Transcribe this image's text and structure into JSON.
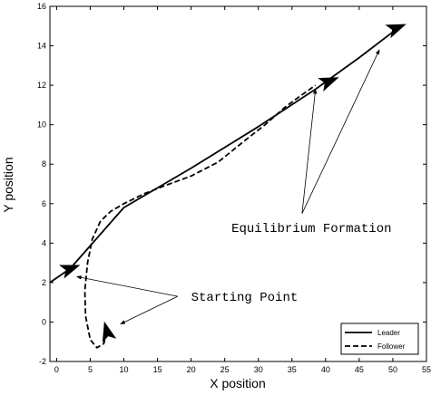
{
  "chart_data": {
    "type": "line",
    "xlabel": "X position",
    "ylabel": "Y position",
    "xlim": [
      -1,
      55
    ],
    "ylim": [
      -2,
      16
    ],
    "xticks": [
      0,
      5,
      10,
      15,
      20,
      25,
      30,
      35,
      40,
      45,
      50,
      55
    ],
    "yticks": [
      -2,
      0,
      2,
      4,
      6,
      8,
      10,
      12,
      14,
      16
    ],
    "grid": false,
    "legend_position": "bottom-right",
    "series": [
      {
        "name": "Leader",
        "style": "solid",
        "color": "#000000",
        "x": [
          -1,
          2,
          10,
          20,
          30,
          38.5,
          45,
          50
        ],
        "y": [
          2.0,
          2.7,
          5.8,
          7.8,
          9.9,
          11.8,
          13.4,
          14.7
        ]
      },
      {
        "name": "Follower",
        "style": "dashed",
        "color": "#000000",
        "x": [
          7.5,
          7.0,
          6.0,
          5.0,
          4.3,
          4.2,
          4.6,
          5.3,
          6.5,
          8.0,
          10.0,
          13.0,
          16.0,
          20.0,
          24.0,
          28.0,
          31.0,
          34.0,
          36.0,
          38.5
        ],
        "y": [
          -0.5,
          -1.1,
          -1.3,
          -0.9,
          0.3,
          1.6,
          3.0,
          4.2,
          5.1,
          5.6,
          6.0,
          6.5,
          6.9,
          7.4,
          8.1,
          9.2,
          10.0,
          10.9,
          11.4,
          12.0
        ]
      }
    ],
    "markers": [
      {
        "name": "leader-start-arrowhead",
        "x": 2.0,
        "y": 2.7,
        "angle_deg": 20
      },
      {
        "name": "follower-start-arrowhead",
        "x": 7.5,
        "y": -0.5,
        "angle_deg": 105
      },
      {
        "name": "mid-arrowhead",
        "x": 40.5,
        "y": 12.2,
        "angle_deg": 22
      },
      {
        "name": "end-arrowhead",
        "x": 50.5,
        "y": 14.9,
        "angle_deg": 22
      }
    ],
    "annotations": [
      {
        "text": "Equilibrium Formation",
        "text_pos": [
          26,
          4.8
        ],
        "arrow_tail": [
          36.5,
          5.5
        ],
        "arrows_to": [
          [
            38.5,
            11.8
          ],
          [
            48,
            13.8
          ]
        ]
      },
      {
        "text": "Starting Point",
        "text_pos": [
          20,
          1.3
        ],
        "arrow_tail": [
          18,
          1.3
        ],
        "arrows_to": [
          [
            3,
            2.3
          ],
          [
            9.5,
            -0.1
          ]
        ]
      }
    ]
  }
}
